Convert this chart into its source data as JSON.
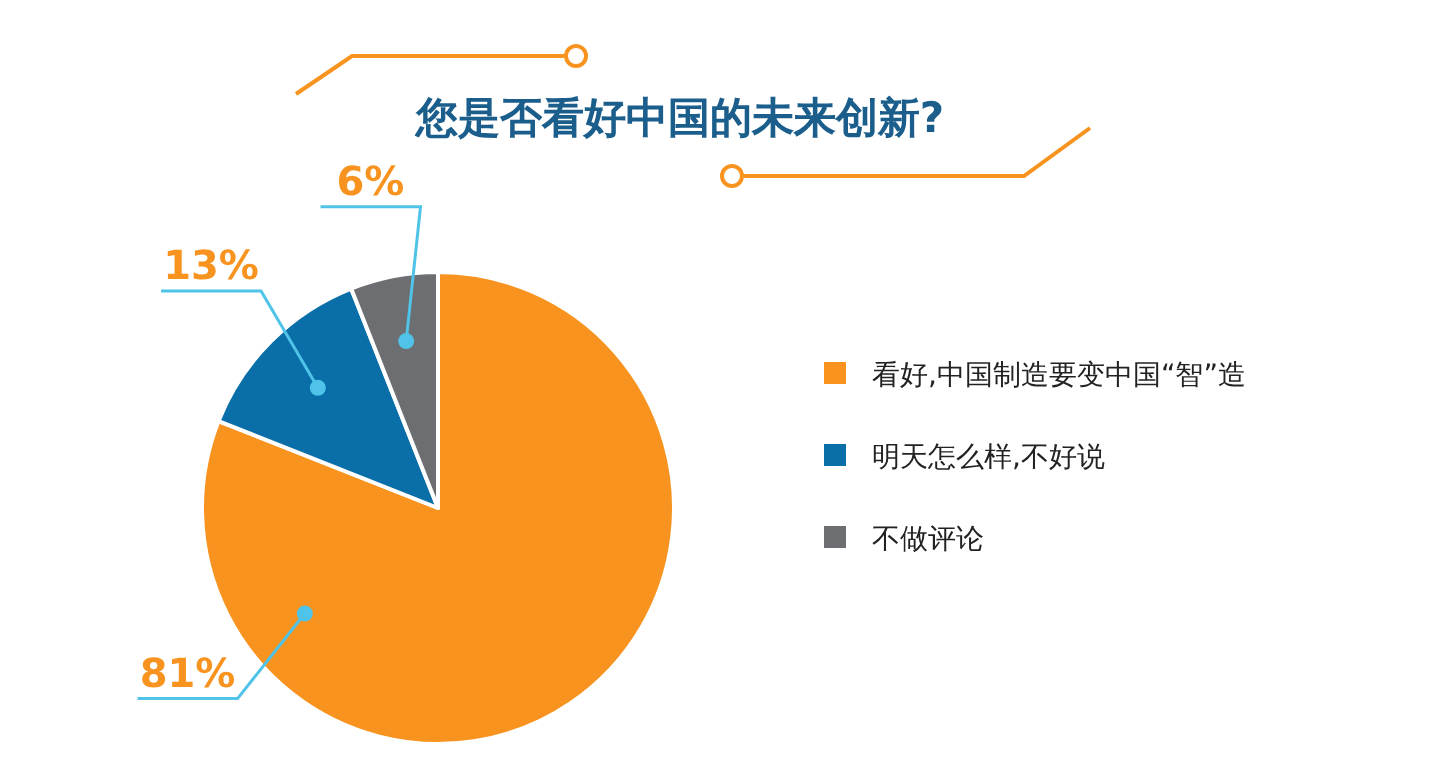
{
  "chart_data": {
    "type": "pie",
    "title": "您是否看好中国的未来创新?",
    "categories": [
      "看好,中国制造要变中国“智”造",
      "明天怎么样,不好说",
      "不做评论"
    ],
    "values": [
      81,
      13,
      6
    ],
    "colors": [
      "#f7931e",
      "#0a6ea8",
      "#6d6e71"
    ],
    "value_labels": [
      "81%",
      "13%",
      "6%"
    ],
    "legend": "right"
  }
}
